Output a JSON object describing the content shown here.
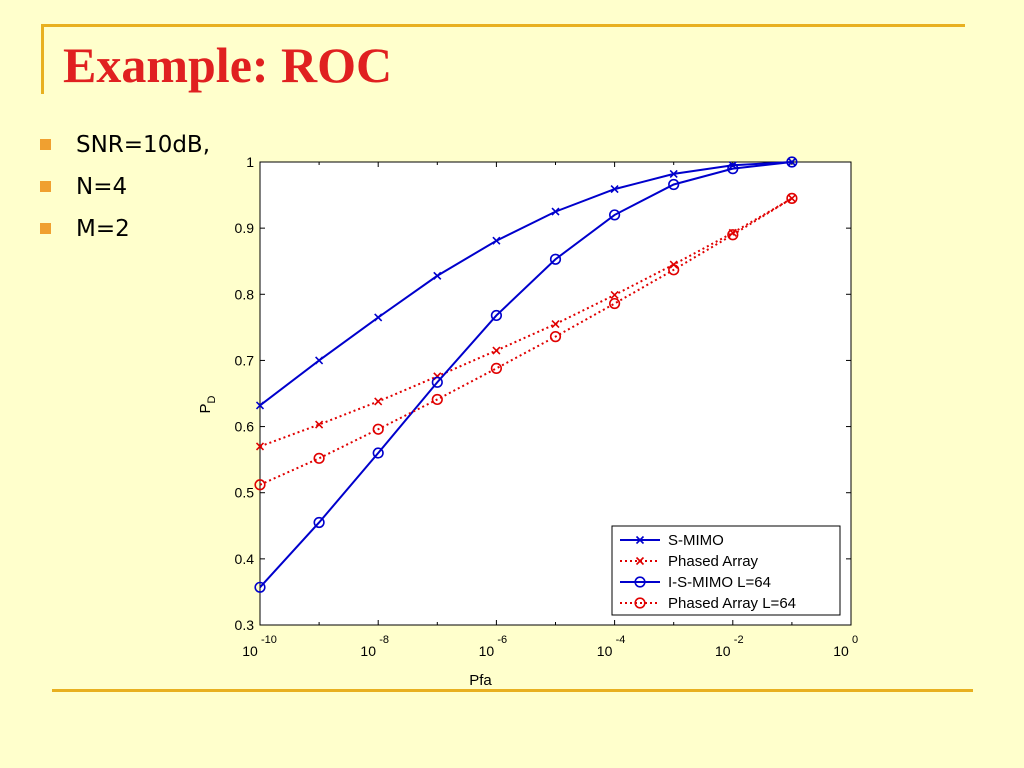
{
  "slide": {
    "title": "Example: ROC",
    "bullets": [
      "SNR=10dB,",
      "N=4",
      "M=2"
    ]
  },
  "colors": {
    "frame": "#E8B020",
    "title": "#E02020",
    "bullet_marker": "#F0A030",
    "background": "#FFFFCC"
  },
  "chart_data": {
    "type": "line",
    "xscale": "log",
    "xlabel": "Pfa",
    "ylabel_main": "P",
    "ylabel_sub": "D",
    "xlim": [
      1e-10,
      1
    ],
    "ylim": [
      0.3,
      1
    ],
    "grid": false,
    "legend_position": "bottom-right",
    "x_ticks": [
      {
        "base": "10",
        "exp": "-10",
        "value": 1e-10
      },
      {
        "base": "10",
        "exp": "-8",
        "value": 1e-08
      },
      {
        "base": "10",
        "exp": "-6",
        "value": 1e-06
      },
      {
        "base": "10",
        "exp": "-4",
        "value": 0.0001
      },
      {
        "base": "10",
        "exp": "-2",
        "value": 0.01
      },
      {
        "base": "10",
        "exp": "0",
        "value": 1
      }
    ],
    "y_ticks": [
      "0.3",
      "0.4",
      "0.5",
      "0.6",
      "0.7",
      "0.8",
      "0.9",
      "1"
    ],
    "x": [
      1e-10,
      1e-09,
      1e-08,
      1e-07,
      1e-06,
      1e-05,
      0.0001,
      0.001,
      0.01,
      0.1
    ],
    "series": [
      {
        "name": "S-MIMO",
        "color": "#0000CC",
        "dash": "solid",
        "marker": "x",
        "values": [
          0.632,
          0.7,
          0.765,
          0.828,
          0.881,
          0.925,
          0.959,
          0.982,
          0.995,
          1.0
        ]
      },
      {
        "name": "Phased Array",
        "color": "#E00000",
        "dash": "dotted",
        "marker": "x",
        "values": [
          0.57,
          0.603,
          0.638,
          0.676,
          0.715,
          0.755,
          0.799,
          0.845,
          0.893,
          0.945
        ]
      },
      {
        "name": "I-S-MIMO L=64",
        "color": "#0000CC",
        "dash": "solid",
        "marker": "o",
        "values": [
          0.357,
          0.455,
          0.56,
          0.667,
          0.768,
          0.853,
          0.92,
          0.966,
          0.99,
          1.0
        ]
      },
      {
        "name": "Phased Array L=64",
        "color": "#E00000",
        "dash": "dotted",
        "marker": "o",
        "values": [
          0.512,
          0.552,
          0.596,
          0.641,
          0.688,
          0.736,
          0.786,
          0.837,
          0.89,
          0.945
        ]
      }
    ]
  }
}
